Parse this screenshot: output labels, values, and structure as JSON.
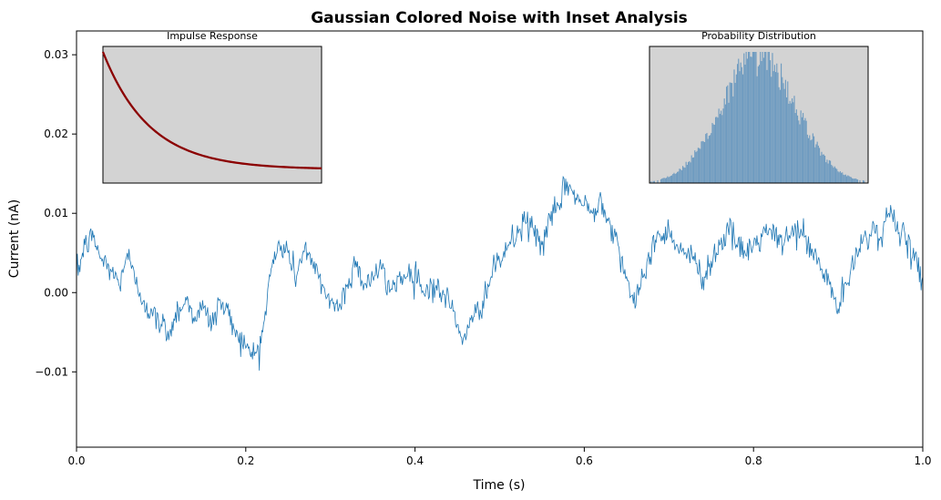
{
  "chart_data": {
    "type": "line",
    "title": "Gaussian Colored Noise with Inset Analysis",
    "xlabel": "Time (s)",
    "ylabel": "Current (nA)",
    "xlim": [
      0.0,
      1.0
    ],
    "ylim": [
      -0.0195,
      0.033
    ],
    "x_ticks": [
      0.0,
      0.2,
      0.4,
      0.6,
      0.8,
      1.0
    ],
    "x_tick_labels": [
      "0.0",
      "0.2",
      "0.4",
      "0.6",
      "0.8",
      "1.0"
    ],
    "y_ticks": [
      -0.01,
      0.0,
      0.01,
      0.02,
      0.03
    ],
    "y_tick_labels": [
      "−0.01",
      "0.00",
      "0.01",
      "0.02",
      "0.03"
    ],
    "grid": false,
    "legend": "none",
    "series": [
      {
        "color": "#1f77b4",
        "anchors": [
          [
            0.0,
            0.002
          ],
          [
            0.01,
            0.006
          ],
          [
            0.02,
            0.007
          ],
          [
            0.03,
            0.004
          ],
          [
            0.04,
            0.003
          ],
          [
            0.05,
            0.001
          ],
          [
            0.06,
            0.005
          ],
          [
            0.07,
            0.001
          ],
          [
            0.08,
            -0.001
          ],
          [
            0.09,
            -0.003
          ],
          [
            0.1,
            -0.004
          ],
          [
            0.11,
            -0.005
          ],
          [
            0.12,
            -0.002
          ],
          [
            0.13,
            -0.001
          ],
          [
            0.14,
            -0.003
          ],
          [
            0.15,
            -0.002
          ],
          [
            0.16,
            -0.004
          ],
          [
            0.17,
            -0.001
          ],
          [
            0.18,
            -0.003
          ],
          [
            0.19,
            -0.005
          ],
          [
            0.2,
            -0.007
          ],
          [
            0.21,
            -0.008
          ],
          [
            0.22,
            -0.005
          ],
          [
            0.23,
            0.003
          ],
          [
            0.24,
            0.006
          ],
          [
            0.25,
            0.005
          ],
          [
            0.26,
            0.002
          ],
          [
            0.27,
            0.006
          ],
          [
            0.28,
            0.003
          ],
          [
            0.29,
            0.001
          ],
          [
            0.3,
            -0.001
          ],
          [
            0.31,
            -0.002
          ],
          [
            0.32,
            0.001
          ],
          [
            0.33,
            0.004
          ],
          [
            0.34,
            0.001
          ],
          [
            0.35,
            0.002
          ],
          [
            0.36,
            0.003
          ],
          [
            0.37,
            0.0
          ],
          [
            0.38,
            0.002
          ],
          [
            0.39,
            0.002
          ],
          [
            0.4,
            0.003
          ],
          [
            0.41,
            0.0
          ],
          [
            0.42,
            0.001
          ],
          [
            0.43,
            0.0
          ],
          [
            0.44,
            -0.001
          ],
          [
            0.45,
            -0.004
          ],
          [
            0.46,
            -0.006
          ],
          [
            0.47,
            -0.003
          ],
          [
            0.48,
            -0.001
          ],
          [
            0.49,
            0.002
          ],
          [
            0.5,
            0.004
          ],
          [
            0.51,
            0.006
          ],
          [
            0.52,
            0.007
          ],
          [
            0.53,
            0.009
          ],
          [
            0.54,
            0.008
          ],
          [
            0.55,
            0.006
          ],
          [
            0.56,
            0.009
          ],
          [
            0.57,
            0.011
          ],
          [
            0.58,
            0.014
          ],
          [
            0.59,
            0.012
          ],
          [
            0.6,
            0.011
          ],
          [
            0.61,
            0.01
          ],
          [
            0.62,
            0.012
          ],
          [
            0.63,
            0.009
          ],
          [
            0.64,
            0.006
          ],
          [
            0.65,
            0.002
          ],
          [
            0.66,
            -0.002
          ],
          [
            0.67,
            0.002
          ],
          [
            0.68,
            0.006
          ],
          [
            0.69,
            0.007
          ],
          [
            0.7,
            0.008
          ],
          [
            0.71,
            0.006
          ],
          [
            0.72,
            0.005
          ],
          [
            0.73,
            0.004
          ],
          [
            0.74,
            0.002
          ],
          [
            0.75,
            0.004
          ],
          [
            0.76,
            0.006
          ],
          [
            0.77,
            0.008
          ],
          [
            0.78,
            0.006
          ],
          [
            0.79,
            0.005
          ],
          [
            0.8,
            0.006
          ],
          [
            0.81,
            0.007
          ],
          [
            0.82,
            0.008
          ],
          [
            0.83,
            0.006
          ],
          [
            0.84,
            0.007
          ],
          [
            0.85,
            0.008
          ],
          [
            0.86,
            0.007
          ],
          [
            0.87,
            0.005
          ],
          [
            0.88,
            0.003
          ],
          [
            0.89,
            0.001
          ],
          [
            0.9,
            -0.002
          ],
          [
            0.91,
            0.001
          ],
          [
            0.92,
            0.004
          ],
          [
            0.93,
            0.007
          ],
          [
            0.94,
            0.008
          ],
          [
            0.95,
            0.007
          ],
          [
            0.96,
            0.01
          ],
          [
            0.97,
            0.009
          ],
          [
            0.98,
            0.006
          ],
          [
            0.99,
            0.004
          ],
          [
            1.0,
            0.002
          ]
        ]
      }
    ],
    "insets": [
      {
        "title": "Impulse Response",
        "type": "line",
        "background": "#d3d3d3",
        "color": "#8b0000",
        "x_range": [
          0.0,
          1.0
        ],
        "decay_rate": 4.7
      },
      {
        "title": "Probability Distribution",
        "type": "histogram",
        "background": "#d3d3d3",
        "color": "#6e9bc0",
        "bins": 200,
        "mean_fraction": 0.5,
        "sd_fraction": 0.17
      }
    ]
  }
}
